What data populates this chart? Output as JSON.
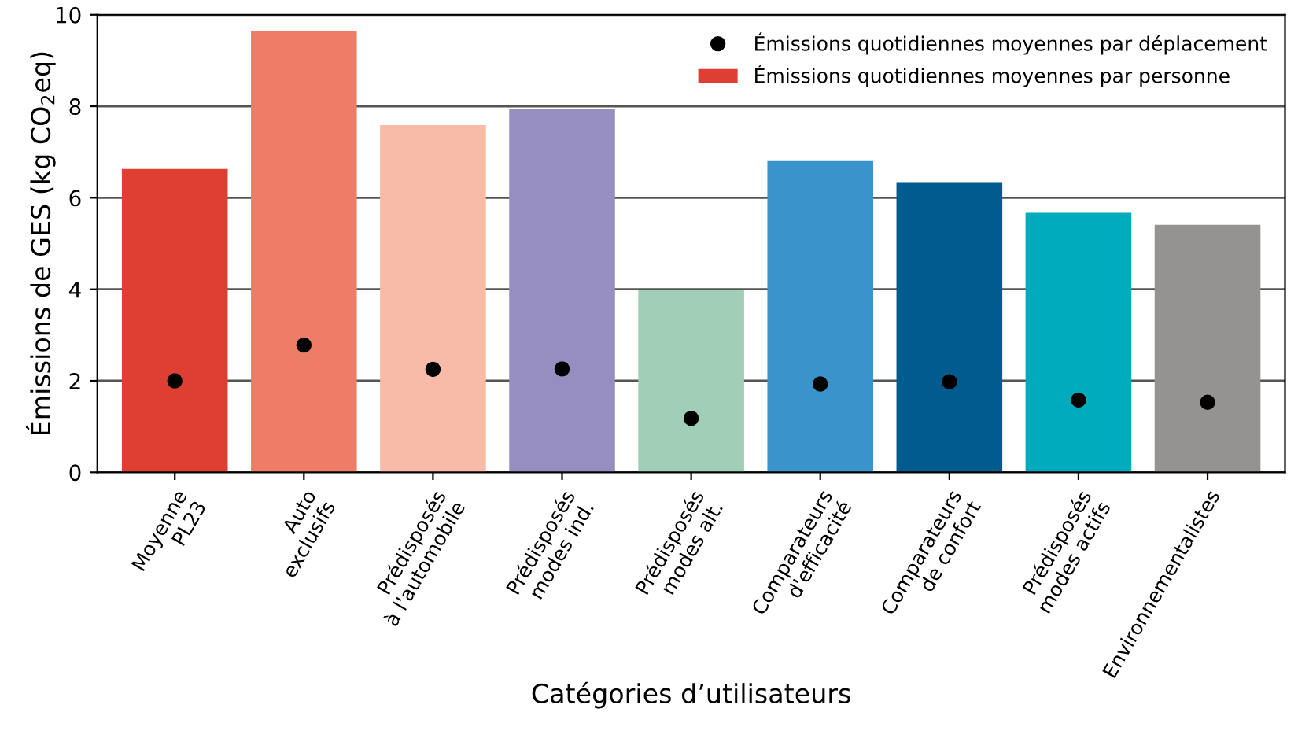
{
  "chart_data": {
    "type": "bar",
    "xlabel": "Catégories d’utilisateurs",
    "ylabel": "Émissions de GES (kg CO$_{2}$eq)",
    "categories": [
      "Moyenne\nPL23",
      "Auto\nexclusifs",
      "Prédisposés\nà l'automobile",
      "Prédisposés\nmodes ind.",
      "Prédisposés\nmodes alt.",
      "Comparateurs\nd'efficacité",
      "Comparateurs\nde confort",
      "Prédisposés\nmodes actifs",
      "Environnementalistes"
    ],
    "series": [
      {
        "name": "Émissions quotidiennes moyennes par personne",
        "color": "#df3e32",
        "colors": [
          "#df3e32",
          "#ee7d67",
          "#f7bba8",
          "#968ec1",
          "#a0ceb6",
          "#3a94cb",
          "#025b8f",
          "#00abbd",
          "#949392"
        ],
        "values": [
          6.63,
          9.65,
          7.59,
          7.95,
          3.98,
          6.82,
          6.34,
          5.67,
          5.41
        ]
      },
      {
        "name": "Émissions quotidiennes moyennes par déplacement",
        "type": "scatter",
        "color": "#000000",
        "marker": "circle",
        "values": [
          2.0,
          2.78,
          2.25,
          2.26,
          1.18,
          1.93,
          1.98,
          1.58,
          1.53
        ]
      }
    ],
    "ylim": [
      0,
      10
    ],
    "yticks": [
      0,
      2,
      4,
      6,
      8,
      10
    ],
    "grid": "y",
    "legend": "top right"
  }
}
